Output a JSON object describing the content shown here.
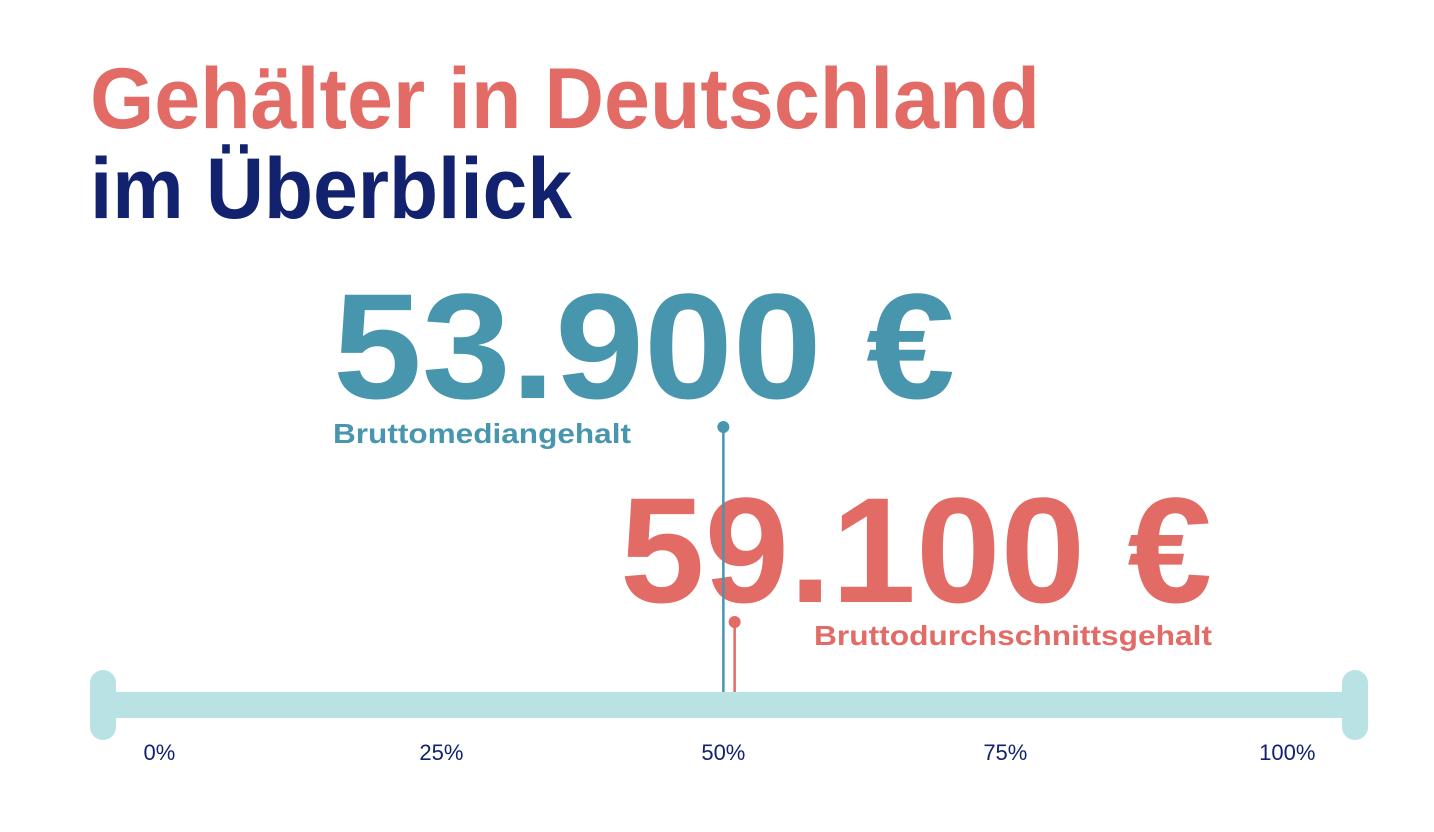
{
  "chart_data": {
    "type": "lollipop",
    "title": "Gehälter in Deutschland",
    "subtitle": "im Überblick",
    "xlim": [
      -5,
      106
    ],
    "xticks": [
      {
        "value": 0,
        "label": "0%"
      },
      {
        "value": 25,
        "label": "25%"
      },
      {
        "value": 50,
        "label": "50%"
      },
      {
        "value": 75,
        "label": "75%"
      },
      {
        "value": 100,
        "label": "100%"
      }
    ],
    "series": [
      {
        "name": "Bruttomediangehalt",
        "amount": "53.900 €",
        "color": "#4896ae",
        "values": [
          50
        ]
      },
      {
        "name": "Bruttodurchschnittsgehalt",
        "amount": "59.100 €",
        "color": "#e36b66",
        "values": [
          51
        ]
      }
    ],
    "title_color": "#e36b66",
    "subtitle_color": "#13226e",
    "axis_color": "#b9e2e5",
    "tick_color": "#13226e"
  }
}
